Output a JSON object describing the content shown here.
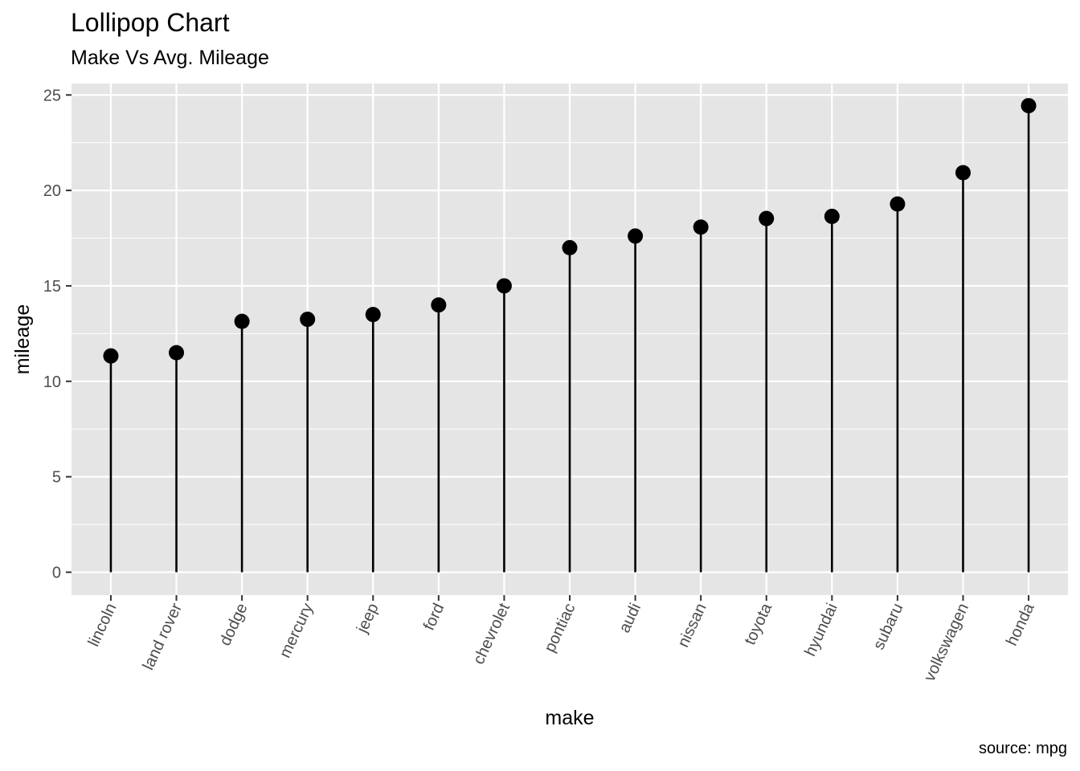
{
  "title": "Lollipop Chart",
  "subtitle": "Make Vs Avg. Mileage",
  "caption": "source: mpg",
  "chart_data": {
    "type": "lollipop",
    "title": "Lollipop Chart",
    "subtitle": "Make Vs Avg. Mileage",
    "xlabel": "make",
    "ylabel": "mileage",
    "caption": "source: mpg",
    "ylim": [
      -1.2,
      25.6
    ],
    "yticks": [
      0,
      5,
      10,
      15,
      20,
      25
    ],
    "categories": [
      "lincoln",
      "land rover",
      "dodge",
      "mercury",
      "jeep",
      "ford",
      "chevrolet",
      "pontiac",
      "audi",
      "nissan",
      "toyota",
      "hyundai",
      "subaru",
      "volkswagen",
      "honda"
    ],
    "values": [
      11.33,
      11.5,
      13.14,
      13.25,
      13.5,
      14.0,
      15.0,
      17.0,
      17.61,
      18.08,
      18.53,
      18.64,
      19.29,
      20.93,
      24.44
    ],
    "grid": true,
    "colors": {
      "panel": "#e5e5e5",
      "grid": "#ffffff",
      "marker": "#000000",
      "tick_text": "#4d4d4d"
    }
  }
}
